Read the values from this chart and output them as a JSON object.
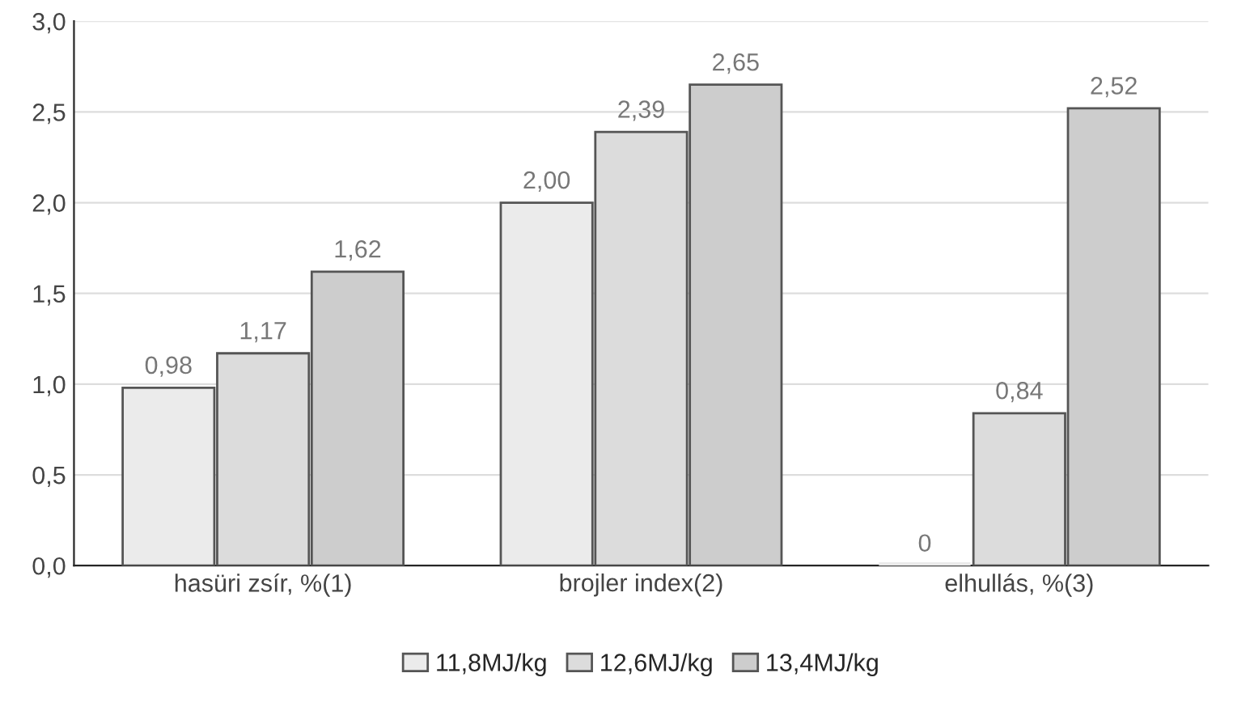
{
  "chart_data": {
    "type": "bar",
    "categories": [
      "hasüri zsír, %(1)",
      "brojler index(2)",
      "elhullás, %(3)"
    ],
    "series": [
      {
        "name": "11,8MJ/kg",
        "color": "#ebebeb",
        "values": [
          0.98,
          2.0,
          0
        ],
        "value_labels": [
          "0,98",
          "2,00",
          "0"
        ]
      },
      {
        "name": "12,6MJ/kg",
        "color": "#dcdcdc",
        "values": [
          1.17,
          2.39,
          0.84
        ],
        "value_labels": [
          "1,17",
          "2,39",
          "0,84"
        ]
      },
      {
        "name": "13,4MJ/kg",
        "color": "#cdcdcd",
        "values": [
          1.62,
          2.65,
          2.52
        ],
        "value_labels": [
          "1,62",
          "2,65",
          "2,52"
        ]
      }
    ],
    "ylim": [
      0,
      3
    ],
    "yticks": [
      {
        "value": 0,
        "label": "0,0"
      },
      {
        "value": 0.5,
        "label": "0,5"
      },
      {
        "value": 1,
        "label": "1,0"
      },
      {
        "value": 1.5,
        "label": "1,5"
      },
      {
        "value": 2,
        "label": "2,0"
      },
      {
        "value": 2.5,
        "label": "2,5"
      },
      {
        "value": 3,
        "label": "3,0"
      }
    ],
    "grid": "y",
    "legend": "bottom"
  }
}
